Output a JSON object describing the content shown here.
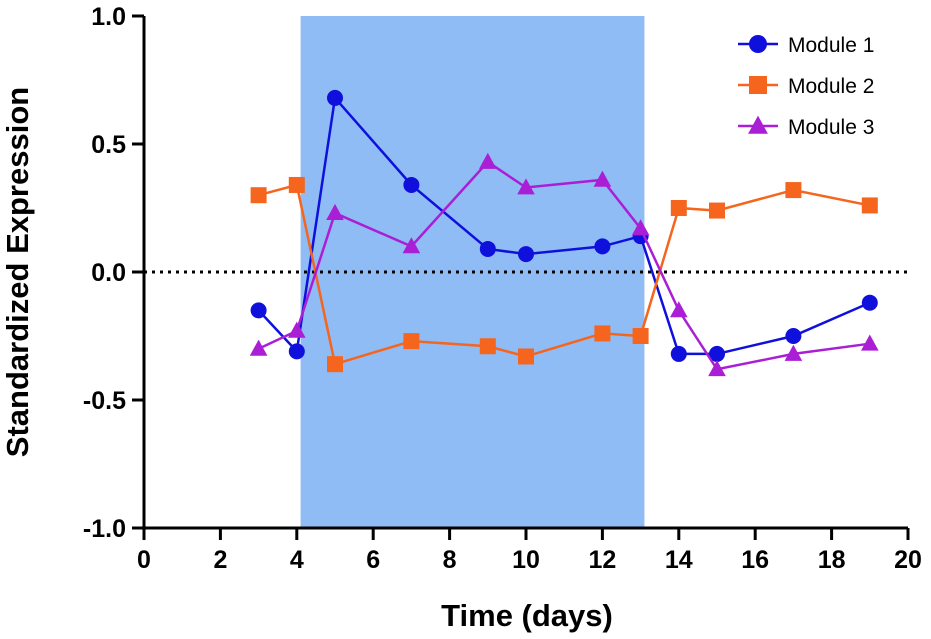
{
  "chart_data": {
    "type": "line",
    "title": "",
    "xlabel": "Time (days)",
    "ylabel": "Standardized Expression",
    "xlim": [
      0,
      20
    ],
    "ylim": [
      -1.0,
      1.0
    ],
    "xticks": [
      0,
      2,
      4,
      6,
      8,
      10,
      12,
      14,
      16,
      18,
      20
    ],
    "xtick_labels": [
      "0",
      "2",
      "4",
      "6",
      "8",
      "10",
      "12",
      "14",
      "16",
      "18",
      "20"
    ],
    "yticks": [
      -1.0,
      -0.5,
      0.0,
      0.5,
      1.0
    ],
    "ytick_labels": [
      "-1.0",
      "-0.5",
      "0.0",
      "0.5",
      "1.0"
    ],
    "reference_line": {
      "y": 0.0,
      "style": "dotted",
      "color": "#000000"
    },
    "shaded_region": {
      "x_start": 4.1,
      "x_end": 13.1,
      "color": "#8fbcf5"
    },
    "legend_position": "top-right",
    "series": [
      {
        "name": "Module 1",
        "marker": "circle",
        "color": "#1010dd",
        "x": [
          3,
          4,
          5,
          7,
          9,
          10,
          12,
          13,
          14,
          15,
          17,
          19
        ],
        "y": [
          -0.15,
          -0.31,
          0.68,
          0.34,
          0.09,
          0.07,
          0.1,
          0.14,
          -0.32,
          -0.32,
          -0.25,
          -0.12
        ]
      },
      {
        "name": "Module 2",
        "marker": "square",
        "color": "#f5651e",
        "x": [
          3,
          4,
          5,
          7,
          9,
          10,
          12,
          13,
          14,
          15,
          17,
          19
        ],
        "y": [
          0.3,
          0.34,
          -0.36,
          -0.27,
          -0.29,
          -0.33,
          -0.24,
          -0.25,
          0.25,
          0.24,
          0.32,
          0.26
        ]
      },
      {
        "name": "Module 3",
        "marker": "triangle",
        "color": "#aa1fd6",
        "x": [
          3,
          4,
          5,
          7,
          9,
          10,
          12,
          13,
          14,
          15,
          17,
          19
        ],
        "y": [
          -0.3,
          -0.23,
          0.23,
          0.1,
          0.43,
          0.33,
          0.36,
          0.17,
          -0.15,
          -0.38,
          -0.32,
          -0.28
        ]
      }
    ]
  }
}
